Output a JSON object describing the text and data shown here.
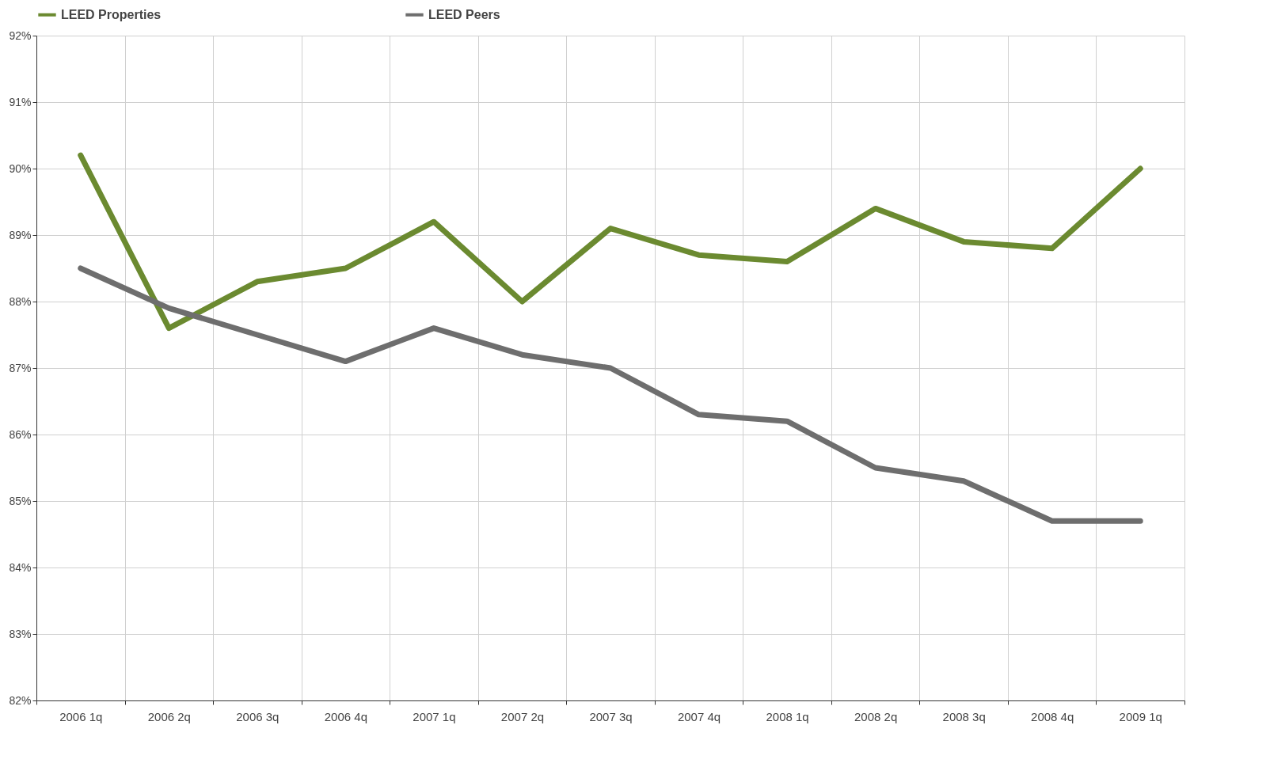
{
  "chart_data": {
    "type": "line",
    "categories": [
      "2006 1q",
      "2006 2q",
      "2006 3q",
      "2006 4q",
      "2007 1q",
      "2007 2q",
      "2007 3q",
      "2007 4q",
      "2008 1q",
      "2008 2q",
      "2008 3q",
      "2008 4q",
      "2009 1q"
    ],
    "series": [
      {
        "name": "LEED Properties",
        "color": "#6b8a30",
        "values": [
          90.2,
          87.6,
          88.3,
          88.5,
          89.2,
          88.0,
          89.1,
          88.7,
          88.6,
          89.4,
          88.9,
          88.8,
          90.0
        ]
      },
      {
        "name": "LEED Peers",
        "color": "#6e6e6e",
        "values": [
          88.5,
          87.9,
          87.5,
          87.1,
          87.6,
          87.2,
          87.0,
          86.3,
          86.2,
          85.5,
          85.3,
          84.7,
          84.7
        ]
      }
    ],
    "ylim": [
      82,
      92
    ],
    "yticks": [
      {
        "value": 82,
        "label": "82%"
      },
      {
        "value": 83,
        "label": "83%"
      },
      {
        "value": 84,
        "label": "84%"
      },
      {
        "value": 85,
        "label": "85%"
      },
      {
        "value": 86,
        "label": "86%"
      },
      {
        "value": 87,
        "label": "87%"
      },
      {
        "value": 88,
        "label": "88%"
      },
      {
        "value": 89,
        "label": "89%"
      },
      {
        "value": 90,
        "label": "90%"
      },
      {
        "value": 91,
        "label": "91%"
      },
      {
        "value": 92,
        "label": "92%"
      }
    ],
    "grid": true,
    "legend": "top",
    "marker": "none",
    "line_style": "solid"
  }
}
